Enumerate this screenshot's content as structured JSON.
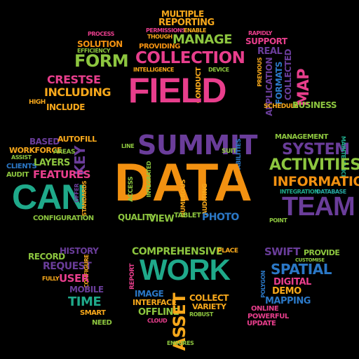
{
  "colors": {
    "background": "#000000",
    "pink": "#e83e8c",
    "yellow": "#f7a81b",
    "green": "#1fa98a",
    "purple": "#6a3d9a",
    "lime": "#8dc63f",
    "orange": "#f29111",
    "blue": "#2b78c6",
    "teal": "#27a8a1"
  },
  "clusters": {
    "top_center": [
      "MULTIPLE",
      "REPORTING",
      "PERMISSIONS",
      "ENABLE",
      "THOUGH",
      "MANAGE",
      "PROVIDING",
      "COLLECTION",
      "INTELLIGENCE",
      "DEVICE",
      "CONDUCT",
      "FIELD"
    ],
    "top_left": [
      "PROCESS",
      "SOLUTION",
      "EFFICIENCY",
      "FORM",
      "CRESTSE",
      "INCLUDING",
      "HIGH",
      "INCLUDE"
    ],
    "top_right": [
      "RAPIDLY",
      "SUPPORT",
      "REAL",
      "PREVIOUS",
      "APPLICATION",
      "FORMATS",
      "COLLECTED",
      "MAP",
      "SCHEDULE",
      "BUSINESS"
    ],
    "middle_left": [
      "BASED",
      "AUTOFILL",
      "WORKFORCE",
      "ASSIST",
      "AREAS",
      "KEY",
      "CLIENTS",
      "LAYERS",
      "AUDIT",
      "FEATURES",
      "CAN",
      "OFFER",
      "STANDARDS",
      "CONFIGURATION"
    ],
    "center": [
      "LINE",
      "SUMMIT",
      "SUIT",
      "CAPABILITIES",
      "DATA",
      "ACCESS",
      "INTEGRATED",
      "NUMEROUS",
      "AUDITING",
      "QUALITY",
      "VIEW",
      "TABLET",
      "PHOTO"
    ],
    "middle_right": [
      "MANAGEMENT",
      "SYSTEM",
      "MAINTENANCE",
      "ACTIVITIES",
      "INFORMATION",
      "INTEGRATION",
      "DATABASE",
      "TEAM",
      "POINT"
    ],
    "bottom_left": [
      "RECORD",
      "HISTORY",
      "REQUEST",
      "CONFIGURE",
      "FULLY",
      "USER",
      "MOBILE",
      "TIME",
      "SMART",
      "NEED"
    ],
    "bottom_center": [
      "COMPREHENSIVE",
      "PLACE",
      "REPORT",
      "WORK",
      "IMAGE",
      "INTERFACE",
      "COLLECT",
      "VARIETY",
      "OFFLINE",
      "ROBUST",
      "CLOUD",
      "ASSET",
      "ENSURES"
    ],
    "bottom_right": [
      "SWIFT",
      "PROVIDE",
      "CUSTOMISE",
      "SPATIAL",
      "POLYGON",
      "DIGITAL",
      "DEMO",
      "MAPPING",
      "ONLINE",
      "POWERFUL",
      "UPDATE"
    ]
  }
}
